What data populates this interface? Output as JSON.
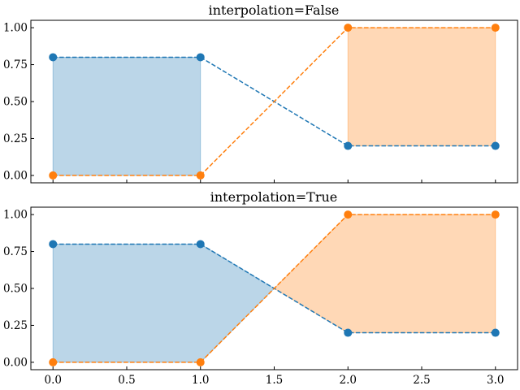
{
  "chart_data": [
    {
      "type": "line",
      "title": "interpolation=False",
      "interpolate": false,
      "x": [
        0,
        1,
        2,
        3
      ],
      "series": [
        {
          "values": [
            0.8,
            0.8,
            0.2,
            0.2
          ],
          "color": "#1f77b4"
        },
        {
          "values": [
            0.0,
            0.0,
            1.0,
            1.0
          ],
          "color": "#ff7f0e"
        }
      ],
      "fill_between": [
        {
          "where": "series1 > series2",
          "color": "#1f77b4",
          "alpha": 0.3
        },
        {
          "where": "series2 > series1",
          "color": "#ff7f0e",
          "alpha": 0.3
        }
      ],
      "line_style": "dashed",
      "marker": "circle",
      "xlim": [
        -0.15,
        3.15
      ],
      "ylim": [
        -0.05,
        1.05
      ],
      "xticks": [
        0,
        0.5,
        1,
        1.5,
        2,
        2.5,
        3
      ],
      "xtick_labels": [],
      "yticks": [
        0,
        0.25,
        0.5,
        0.75,
        1
      ],
      "ytick_labels": [
        "0.00",
        "0.25",
        "0.50",
        "0.75",
        "1.00"
      ],
      "tick_direction": "in",
      "grid": false
    },
    {
      "type": "line",
      "title": "interpolation=True",
      "interpolate": true,
      "x": [
        0,
        1,
        2,
        3
      ],
      "series": [
        {
          "values": [
            0.8,
            0.8,
            0.2,
            0.2
          ],
          "color": "#1f77b4"
        },
        {
          "values": [
            0.0,
            0.0,
            1.0,
            1.0
          ],
          "color": "#ff7f0e"
        }
      ],
      "fill_between": [
        {
          "where": "series1 > series2",
          "color": "#1f77b4",
          "alpha": 0.3
        },
        {
          "where": "series2 > series1",
          "color": "#ff7f0e",
          "alpha": 0.3
        }
      ],
      "line_style": "dashed",
      "marker": "circle",
      "xlim": [
        -0.15,
        3.15
      ],
      "ylim": [
        -0.05,
        1.05
      ],
      "xticks": [
        0,
        0.5,
        1,
        1.5,
        2,
        2.5,
        3
      ],
      "xtick_labels": [
        "0.0",
        "0.5",
        "1.0",
        "1.5",
        "2.0",
        "2.5",
        "3.0"
      ],
      "yticks": [
        0,
        0.25,
        0.5,
        0.75,
        1
      ],
      "ytick_labels": [
        "0.00",
        "0.25",
        "0.50",
        "0.75",
        "1.00"
      ],
      "tick_direction": "in",
      "grid": false
    }
  ]
}
